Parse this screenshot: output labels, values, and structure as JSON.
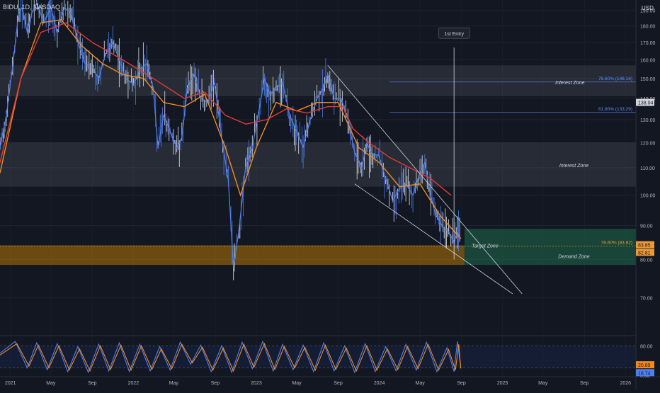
{
  "header": {
    "symbol_line": "BIDU, 1D, NASDAQ"
  },
  "price_axis": {
    "currency": "USD"
  },
  "colors": {
    "background": "#131722",
    "candle_blue": "#4f80f0",
    "ema_fast": "#f28b1e",
    "ema_slow": "#e53935",
    "zone_fill": "#b2b5be",
    "demand_fill": "#d68a00",
    "target_fill": "#1e6b4b",
    "fib_label": "#5b8cff",
    "orange_label": "#e89a3c",
    "stoch_k": "#4f80f0",
    "stoch_d": "#f28b1e"
  },
  "chart_data": [
    {
      "type": "candlestick",
      "symbol": "BIDU",
      "interval": "1D",
      "exchange": "NASDAQ",
      "ylim": [
        62,
        197
      ],
      "y_scale": "log",
      "y_ticks": [
        70,
        80,
        90,
        100,
        110,
        120,
        130,
        140,
        150,
        160,
        170,
        180,
        190
      ],
      "x_ticks": [
        "2021",
        "May",
        "Sep",
        "2022",
        "May",
        "Sep",
        "2023",
        "May",
        "Sep",
        "2024",
        "May",
        "Sep",
        "2025",
        "May",
        "Sep",
        "2026"
      ],
      "price_points": [
        [
          "2020-12-01",
          118
        ],
        [
          "2020-12-20",
          132
        ],
        [
          "2021-01-10",
          160
        ],
        [
          "2021-01-25",
          188
        ],
        [
          "2021-02-05",
          192
        ],
        [
          "2021-02-20",
          176
        ],
        [
          "2021-03-05",
          188
        ],
        [
          "2021-03-20",
          195
        ],
        [
          "2021-04-10",
          182
        ],
        [
          "2021-05-01",
          192
        ],
        [
          "2021-05-20",
          176
        ],
        [
          "2021-06-10",
          192
        ],
        [
          "2021-07-01",
          188
        ],
        [
          "2021-07-20",
          170
        ],
        [
          "2021-08-10",
          158
        ],
        [
          "2021-09-01",
          156
        ],
        [
          "2021-09-20",
          150
        ],
        [
          "2021-10-10",
          163
        ],
        [
          "2021-11-01",
          170
        ],
        [
          "2021-11-20",
          160
        ],
        [
          "2021-12-10",
          150
        ],
        [
          "2022-01-01",
          147
        ],
        [
          "2022-01-20",
          155
        ],
        [
          "2022-02-10",
          158
        ],
        [
          "2022-03-01",
          145
        ],
        [
          "2022-03-15",
          118
        ],
        [
          "2022-04-01",
          132
        ],
        [
          "2022-04-20",
          125
        ],
        [
          "2022-05-10",
          118
        ],
        [
          "2022-05-25",
          122
        ],
        [
          "2022-06-10",
          145
        ],
        [
          "2022-06-30",
          152
        ],
        [
          "2022-07-20",
          140
        ],
        [
          "2022-08-10",
          138
        ],
        [
          "2022-08-30",
          148
        ],
        [
          "2022-09-20",
          122
        ],
        [
          "2022-10-10",
          105
        ],
        [
          "2022-10-25",
          78
        ],
        [
          "2022-11-10",
          88
        ],
        [
          "2022-11-30",
          110
        ],
        [
          "2022-12-20",
          118
        ],
        [
          "2023-01-10",
          135
        ],
        [
          "2023-01-25",
          150
        ],
        [
          "2023-02-10",
          142
        ],
        [
          "2023-03-01",
          145
        ],
        [
          "2023-03-20",
          148
        ],
        [
          "2023-04-10",
          132
        ],
        [
          "2023-04-30",
          125
        ],
        [
          "2023-05-20",
          118
        ],
        [
          "2023-06-10",
          130
        ],
        [
          "2023-06-30",
          140
        ],
        [
          "2023-07-20",
          145
        ],
        [
          "2023-08-01",
          152
        ],
        [
          "2023-08-20",
          140
        ],
        [
          "2023-09-10",
          140
        ],
        [
          "2023-09-30",
          130
        ],
        [
          "2023-10-20",
          116
        ],
        [
          "2023-11-10",
          110
        ],
        [
          "2023-11-25",
          120
        ],
        [
          "2023-12-10",
          115
        ],
        [
          "2023-12-30",
          115
        ],
        [
          "2024-01-20",
          106
        ],
        [
          "2024-02-10",
          98
        ],
        [
          "2024-02-28",
          102
        ],
        [
          "2024-03-20",
          104
        ],
        [
          "2024-04-10",
          100
        ],
        [
          "2024-04-30",
          108
        ],
        [
          "2024-05-15",
          112
        ],
        [
          "2024-05-30",
          101
        ],
        [
          "2024-06-15",
          94
        ],
        [
          "2024-07-05",
          90
        ],
        [
          "2024-07-25",
          88
        ],
        [
          "2024-08-10",
          85
        ],
        [
          "2024-08-20",
          88
        ],
        [
          "2024-08-30",
          86
        ]
      ],
      "series": [
        {
          "type": "line",
          "values": [
            [
              "2020-12-01",
              108
            ],
            [
              "2021-02-01",
              150
            ],
            [
              "2021-04-01",
              182
            ],
            [
              "2021-06-01",
              184
            ],
            [
              "2021-08-01",
              168
            ],
            [
              "2021-10-01",
              158
            ],
            [
              "2021-12-01",
              152
            ],
            [
              "2022-02-01",
              150
            ],
            [
              "2022-04-01",
              138
            ],
            [
              "2022-06-01",
              136
            ],
            [
              "2022-08-01",
              142
            ],
            [
              "2022-10-01",
              118
            ],
            [
              "2022-11-15",
              100
            ],
            [
              "2023-01-01",
              118
            ],
            [
              "2023-03-01",
              138
            ],
            [
              "2023-05-01",
              134
            ],
            [
              "2023-07-01",
              138
            ],
            [
              "2023-09-01",
              138
            ],
            [
              "2023-11-01",
              118
            ],
            [
              "2024-01-01",
              112
            ],
            [
              "2024-03-01",
              103
            ],
            [
              "2024-05-01",
              104
            ],
            [
              "2024-07-01",
              93
            ],
            [
              "2024-08-30",
              86
            ]
          ]
        },
        {
          "type": "line",
          "values": [
            [
              "2020-12-01",
              112
            ],
            [
              "2021-02-01",
              150
            ],
            [
              "2021-04-01",
              176
            ],
            [
              "2021-06-15",
              182
            ],
            [
              "2021-09-01",
              170
            ],
            [
              "2021-12-01",
              160
            ],
            [
              "2022-03-01",
              150
            ],
            [
              "2022-06-01",
              140
            ],
            [
              "2022-08-01",
              143
            ],
            [
              "2022-10-01",
              132
            ],
            [
              "2022-12-01",
              128
            ],
            [
              "2023-02-01",
              130
            ],
            [
              "2023-04-01",
              135
            ],
            [
              "2023-06-01",
              133
            ],
            [
              "2023-08-01",
              136
            ],
            [
              "2023-09-15",
              136
            ],
            [
              "2023-10-15",
              126
            ],
            [
              "2023-12-01",
              120
            ],
            [
              "2024-02-01",
              114
            ],
            [
              "2024-04-01",
              110
            ],
            [
              "2024-06-01",
              106
            ],
            [
              "2024-08-01",
              100
            ]
          ]
        }
      ],
      "zones": [
        {
          "label": "Interest Zone",
          "from": "2020-12-01",
          "to": "2026-06-01",
          "low": 141,
          "high": 157
        },
        {
          "label": "Interest Zone",
          "from": "2020-12-01",
          "to": "2026-06-01",
          "low": 103,
          "high": 120
        },
        {
          "label": "Demand Zone",
          "from": "2020-12-01",
          "to": "2024-09-10",
          "low": 78.5,
          "high": 84
        },
        {
          "label": "",
          "from": "2024-09-10",
          "to": "2026-06-01",
          "low": 78.5,
          "high": 89
        }
      ],
      "levels": [
        {
          "label": "78.60% (148.16)",
          "price": 148.16,
          "from": "2024-02-01"
        },
        {
          "label": "61.80% (133.29)",
          "price": 133.29,
          "from": "2024-02-01"
        },
        {
          "label": "78.60% (83.82)",
          "price": 83.82,
          "from": "2020-12-01"
        }
      ],
      "annotations": [
        {
          "text": "Interest Zone",
          "date": "2025-07-20",
          "price": 148.16
        },
        {
          "text": "Interest Zone",
          "date": "2025-08-01",
          "price": 111
        },
        {
          "text": "Target Zone",
          "date": "2024-11-10",
          "price": 84
        },
        {
          "text": "Demand Zone",
          "date": "2025-08-01",
          "price": 81
        },
        {
          "text": "1st Entry",
          "date": "2024-08-10",
          "price": 175
        }
      ],
      "wedge": {
        "upper": [
          [
            "2023-08-01",
            157
          ],
          [
            "2025-02-28",
            71
          ]
        ],
        "lower": [
          [
            "2023-10-20",
            104
          ],
          [
            "2025-01-31",
            71
          ]
        ]
      },
      "entry_line": {
        "date": "2024-08-10",
        "from_price": 167,
        "to_price": 84
      },
      "axis_badges": [
        {
          "text": "138.04",
          "price": 138.04,
          "style": "white"
        },
        {
          "text": "83.85",
          "price": 84.2,
          "style": "orange"
        },
        {
          "text": "82.81",
          "price": 82.0,
          "style": "orange"
        }
      ]
    },
    {
      "type": "line",
      "indicator": "stochastic",
      "ylim": [
        0,
        100
      ],
      "y_ticks": [
        0,
        80
      ],
      "bands": [
        20,
        80
      ],
      "last_values": [
        20.89,
        18.74
      ],
      "series": [
        {
          "values": [
            [
              "2020-12-01",
              60
            ],
            [
              "2021-01-15",
              92
            ],
            [
              "2021-02-20",
              20
            ],
            [
              "2021-03-20",
              88
            ],
            [
              "2021-04-20",
              15
            ],
            [
              "2021-05-20",
              86
            ],
            [
              "2021-06-20",
              10
            ],
            [
              "2021-07-20",
              78
            ],
            [
              "2021-08-20",
              8
            ],
            [
              "2021-09-20",
              85
            ],
            [
              "2021-10-20",
              12
            ],
            [
              "2021-11-20",
              88
            ],
            [
              "2021-12-20",
              10
            ],
            [
              "2022-01-20",
              84
            ],
            [
              "2022-02-20",
              12
            ],
            [
              "2022-03-20",
              78
            ],
            [
              "2022-04-20",
              14
            ],
            [
              "2022-05-20",
              90
            ],
            [
              "2022-06-20",
              30
            ],
            [
              "2022-07-20",
              82
            ],
            [
              "2022-08-20",
              10
            ],
            [
              "2022-09-20",
              80
            ],
            [
              "2022-10-20",
              8
            ],
            [
              "2022-11-20",
              90
            ],
            [
              "2022-12-20",
              18
            ],
            [
              "2023-01-20",
              92
            ],
            [
              "2023-02-20",
              12
            ],
            [
              "2023-03-20",
              84
            ],
            [
              "2023-04-20",
              15
            ],
            [
              "2023-05-20",
              82
            ],
            [
              "2023-06-20",
              10
            ],
            [
              "2023-07-20",
              88
            ],
            [
              "2023-08-20",
              12
            ],
            [
              "2023-09-20",
              80
            ],
            [
              "2023-10-20",
              8
            ],
            [
              "2023-11-20",
              86
            ],
            [
              "2023-12-20",
              10
            ],
            [
              "2024-01-20",
              78
            ],
            [
              "2024-02-20",
              12
            ],
            [
              "2024-03-20",
              84
            ],
            [
              "2024-04-20",
              14
            ],
            [
              "2024-05-20",
              90
            ],
            [
              "2024-06-20",
              10
            ],
            [
              "2024-07-20",
              75
            ],
            [
              "2024-08-10",
              10
            ],
            [
              "2024-08-20",
              92
            ],
            [
              "2024-08-30",
              20.89
            ]
          ]
        },
        {
          "values": [
            [
              "2020-12-01",
              55
            ],
            [
              "2021-01-20",
              86
            ],
            [
              "2021-02-25",
              25
            ],
            [
              "2021-03-25",
              82
            ],
            [
              "2021-04-25",
              20
            ],
            [
              "2021-05-25",
              80
            ],
            [
              "2021-06-25",
              15
            ],
            [
              "2021-07-25",
              72
            ],
            [
              "2021-08-25",
              12
            ],
            [
              "2021-09-25",
              80
            ],
            [
              "2021-10-25",
              16
            ],
            [
              "2021-11-25",
              82
            ],
            [
              "2021-12-25",
              14
            ],
            [
              "2022-01-25",
              80
            ],
            [
              "2022-02-25",
              16
            ],
            [
              "2022-03-25",
              72
            ],
            [
              "2022-04-25",
              18
            ],
            [
              "2022-05-25",
              84
            ],
            [
              "2022-06-25",
              34
            ],
            [
              "2022-07-25",
              76
            ],
            [
              "2022-08-25",
              14
            ],
            [
              "2022-09-25",
              74
            ],
            [
              "2022-10-25",
              12
            ],
            [
              "2022-11-25",
              84
            ],
            [
              "2022-12-25",
              22
            ],
            [
              "2023-01-25",
              86
            ],
            [
              "2023-02-25",
              16
            ],
            [
              "2023-03-25",
              78
            ],
            [
              "2023-04-25",
              20
            ],
            [
              "2023-05-25",
              76
            ],
            [
              "2023-06-25",
              14
            ],
            [
              "2023-07-25",
              82
            ],
            [
              "2023-08-25",
              16
            ],
            [
              "2023-09-25",
              74
            ],
            [
              "2023-10-25",
              12
            ],
            [
              "2023-11-25",
              80
            ],
            [
              "2023-12-25",
              14
            ],
            [
              "2024-01-25",
              72
            ],
            [
              "2024-02-25",
              16
            ],
            [
              "2024-03-25",
              78
            ],
            [
              "2024-04-25",
              18
            ],
            [
              "2024-05-25",
              84
            ],
            [
              "2024-06-25",
              14
            ],
            [
              "2024-07-25",
              70
            ],
            [
              "2024-08-14",
              14
            ],
            [
              "2024-08-24",
              84
            ],
            [
              "2024-08-30",
              18.74
            ]
          ]
        }
      ]
    }
  ]
}
